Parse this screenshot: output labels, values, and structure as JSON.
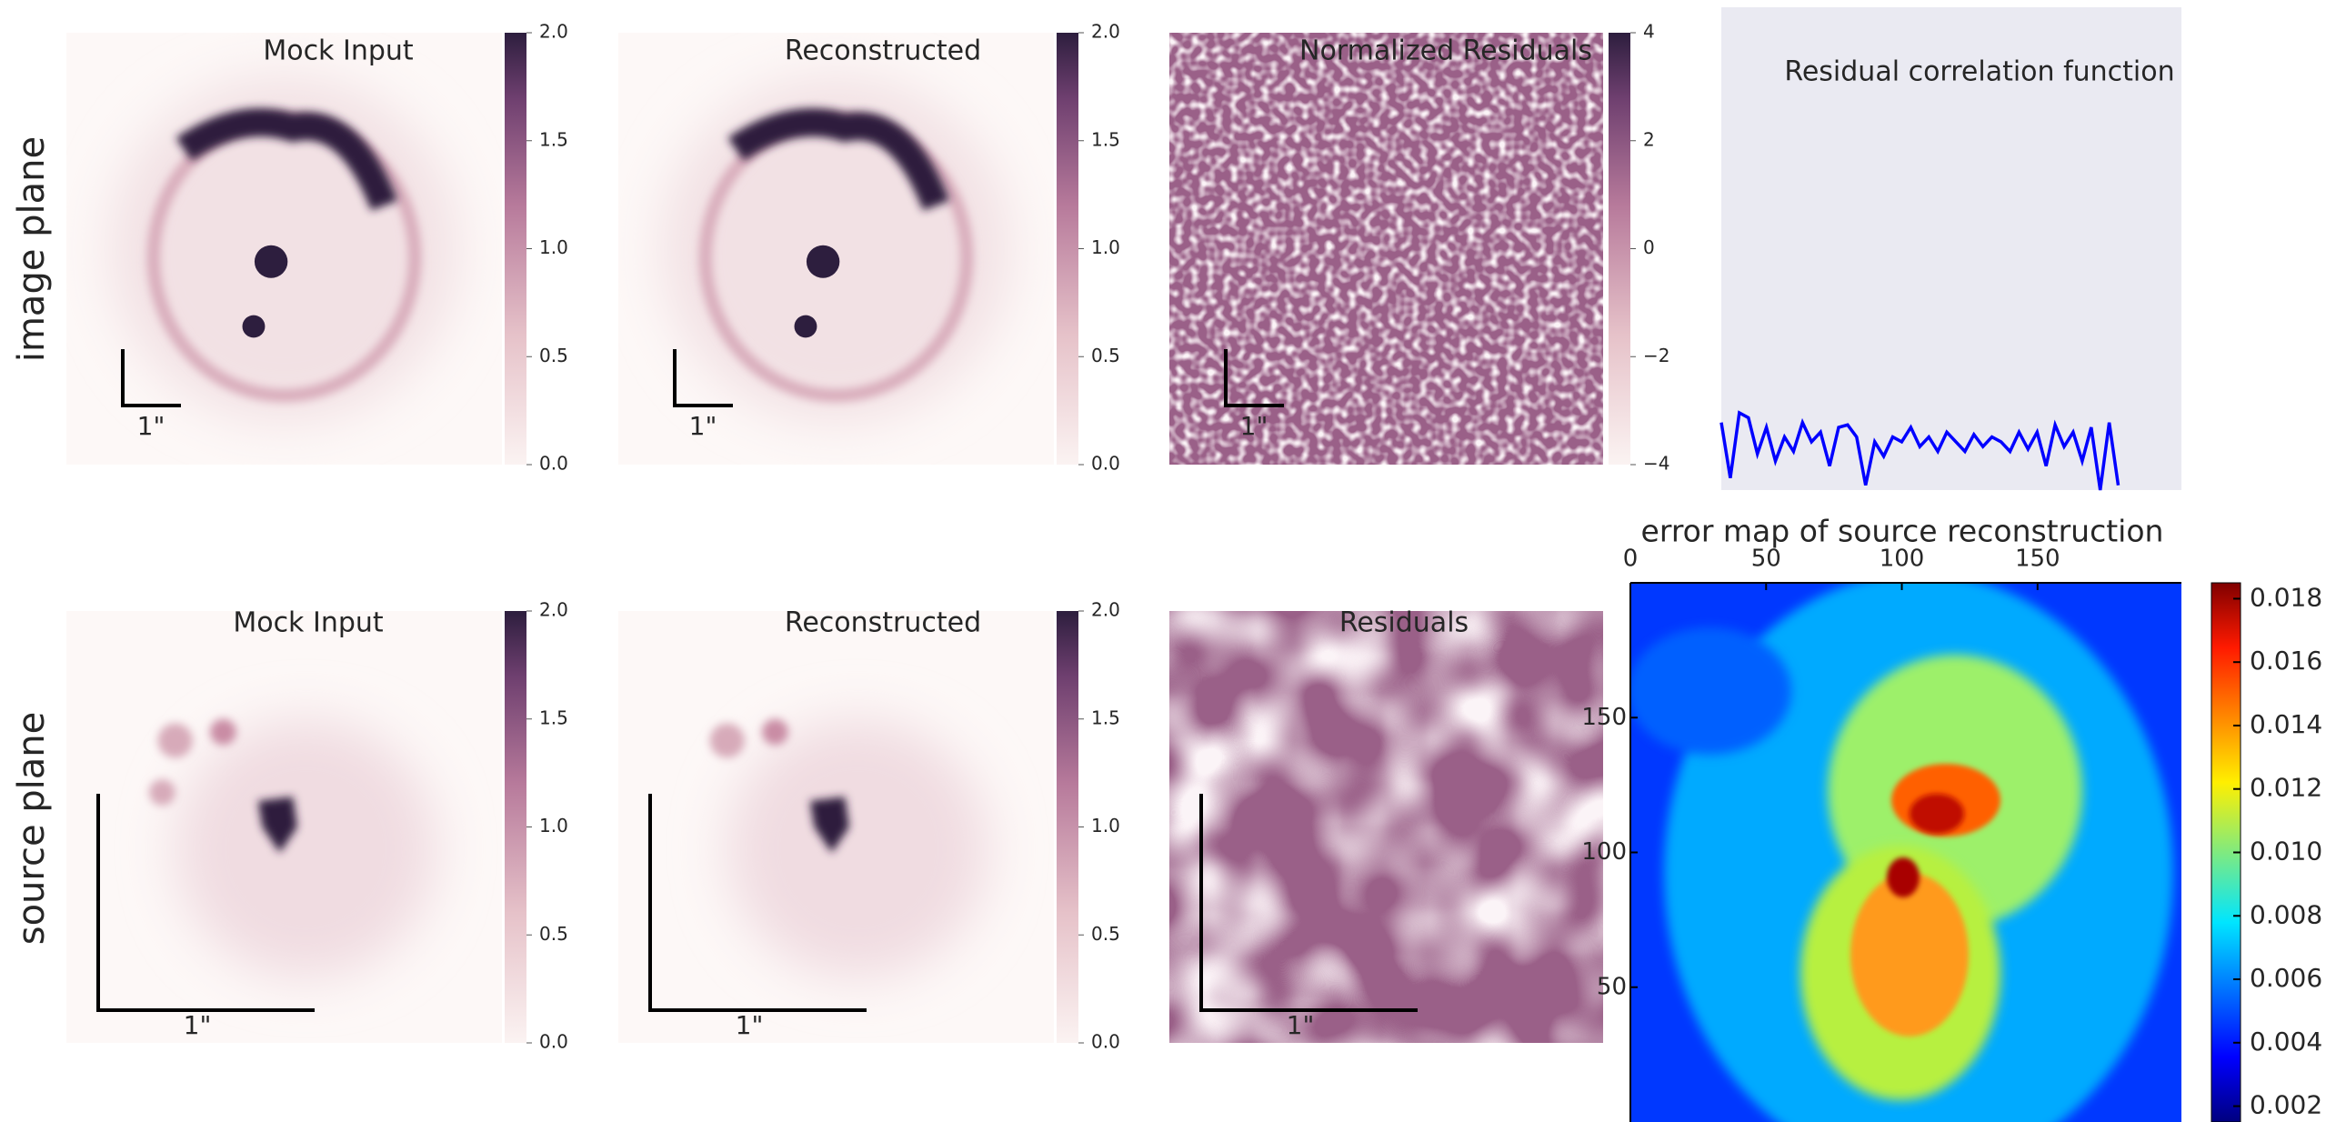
{
  "row_labels": [
    "image plane",
    "source plane"
  ],
  "chart_data": [
    {
      "type": "image",
      "title": "Mock Input",
      "scale_label": "1\"",
      "cmap": "rocket",
      "clim": [
        0,
        2
      ],
      "cticks": [
        {
          "value": 0,
          "label": "0.0"
        },
        0.5,
        {
          "value": 1,
          "label": "1.0"
        },
        1.5,
        {
          "value": 2,
          "label": "2.0"
        }
      ]
    },
    {
      "type": "image",
      "title": "Reconstructed",
      "scale_label": "1\"",
      "cmap": "rocket",
      "clim": [
        0,
        2
      ],
      "cticks": [
        {
          "value": 0,
          "label": "0.0"
        },
        0.5,
        {
          "value": 1,
          "label": "1.0"
        },
        1.5,
        {
          "value": 2,
          "label": "2.0"
        }
      ]
    },
    {
      "type": "image",
      "title": "Normalized Residuals",
      "scale_label": "1\"",
      "cmap": "rocket",
      "clim": [
        -4,
        4
      ],
      "cticks": [
        {
          "value": -4,
          "label": "−4"
        },
        {
          "value": -2,
          "label": "−2"
        },
        0,
        2,
        4
      ]
    },
    {
      "type": "line",
      "title": "Residual correlation function",
      "color": "#0000ff",
      "xlim": [
        0,
        51
      ],
      "ylim": [
        -1,
        1
      ],
      "values": [
        -0.72,
        -0.95,
        -0.68,
        -0.7,
        -0.85,
        -0.74,
        -0.88,
        -0.78,
        -0.84,
        -0.72,
        -0.8,
        -0.76,
        -0.9,
        -0.74,
        -0.73,
        -0.78,
        -0.98,
        -0.8,
        -0.86,
        -0.78,
        -0.8,
        -0.74,
        -0.82,
        -0.78,
        -0.84,
        -0.76,
        -0.8,
        -0.84,
        -0.77,
        -0.82,
        -0.78,
        -0.8,
        -0.84,
        -0.76,
        -0.83,
        -0.76,
        -0.9,
        -0.73,
        -0.82,
        -0.76,
        -0.88,
        -0.74,
        -1.0,
        -0.72,
        -0.98
      ]
    },
    {
      "type": "image",
      "title": "Mock Input",
      "scale_label": "1\"",
      "cmap": "rocket",
      "clim": [
        0,
        2
      ],
      "cticks": [
        {
          "value": 0,
          "label": "0.0"
        },
        0.5,
        {
          "value": 1,
          "label": "1.0"
        },
        1.5,
        {
          "value": 2,
          "label": "2.0"
        }
      ]
    },
    {
      "type": "image",
      "title": "Reconstructed",
      "scale_label": "1\"",
      "cmap": "rocket",
      "clim": [
        0,
        2
      ],
      "cticks": [
        {
          "value": 0,
          "label": "0.0"
        },
        0.5,
        {
          "value": 1,
          "label": "1.0"
        },
        1.5,
        {
          "value": 2,
          "label": "2.0"
        }
      ]
    },
    {
      "type": "image",
      "title": "Residuals",
      "scale_label": "1\"",
      "cmap": "rocket"
    },
    {
      "type": "image",
      "title": "error map of source reconstruction",
      "cmap": "jet",
      "xlim": [
        0,
        203
      ],
      "xticks": [
        0,
        50,
        100,
        150
      ],
      "ylim": [
        0,
        200
      ],
      "yticks": [
        50,
        100,
        150
      ],
      "clim": [
        0.0015,
        0.0185
      ],
      "cticks": [
        0.002,
        0.004,
        0.006,
        0.008,
        {
          "value": 0.01,
          "label": "0.010"
        },
        0.012,
        0.014,
        0.016,
        0.018
      ]
    }
  ]
}
